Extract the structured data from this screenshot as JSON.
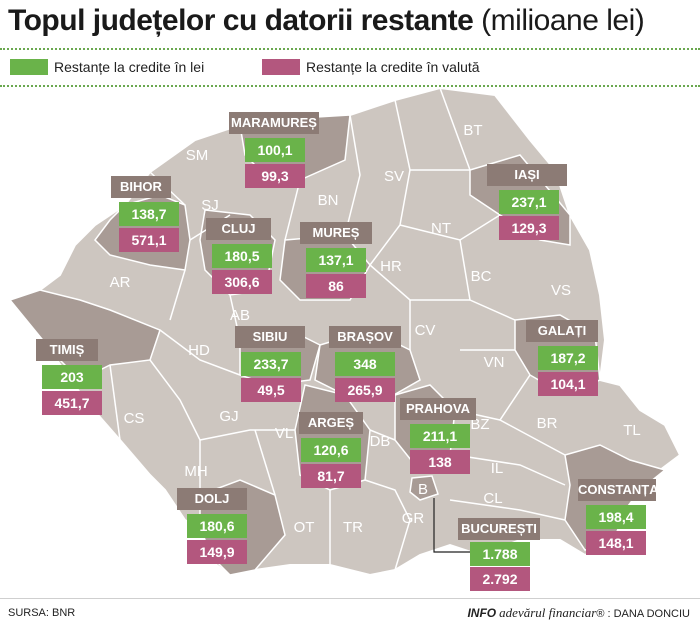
{
  "title": {
    "main": "Topul județelor cu datorii restante",
    "unit": "(milioane lei)"
  },
  "legend": [
    {
      "label": "Restanțe la credite în lei",
      "color": "#6ab34a"
    },
    {
      "label": "Restanțe la credite în valută",
      "color": "#b3577e"
    }
  ],
  "colors": {
    "map_base": "#cdc6c0",
    "map_highlight": "#a89b95",
    "label_box": "#8c7b75",
    "lei": "#6ab34a",
    "valuta": "#b3577e"
  },
  "map_codes": [
    "SM",
    "SJ",
    "AR",
    "AB",
    "HD",
    "CS",
    "GJ",
    "MH",
    "VL",
    "OT",
    "TR",
    "GR",
    "DB",
    "BN",
    "SV",
    "BT",
    "NT",
    "HR",
    "BC",
    "VS",
    "CV",
    "VN",
    "BZ",
    "BR",
    "TL",
    "IL",
    "CL",
    "B"
  ],
  "counties": [
    {
      "name": "MARAMUREȘ",
      "lei": "100,1",
      "valuta": "99,3"
    },
    {
      "name": "BIHOR",
      "lei": "138,7",
      "valuta": "571,1"
    },
    {
      "name": "CLUJ",
      "lei": "180,5",
      "valuta": "306,6"
    },
    {
      "name": "MUREȘ",
      "lei": "137,1",
      "valuta": "86"
    },
    {
      "name": "IAȘI",
      "lei": "237,1",
      "valuta": "129,3"
    },
    {
      "name": "TIMIȘ",
      "lei": "203",
      "valuta": "451,7"
    },
    {
      "name": "SIBIU",
      "lei": "233,7",
      "valuta": "49,5"
    },
    {
      "name": "BRAȘOV",
      "lei": "348",
      "valuta": "265,9"
    },
    {
      "name": "GALAȚI",
      "lei": "187,2",
      "valuta": "104,1"
    },
    {
      "name": "ARGEȘ",
      "lei": "120,6",
      "valuta": "81,7"
    },
    {
      "name": "PRAHOVA",
      "lei": "211,1",
      "valuta": "138"
    },
    {
      "name": "CONSTANȚA",
      "lei": "198,4",
      "valuta": "148,1"
    },
    {
      "name": "DOLJ",
      "lei": "180,6",
      "valuta": "149,9"
    },
    {
      "name": "BUCUREȘTI",
      "lei": "1.788",
      "valuta": "2.792"
    }
  ],
  "footer": {
    "source": "SURSA: BNR",
    "info": "INFO",
    "publisher": "adevărul financiar",
    "credit": "DANA DONCIU"
  }
}
